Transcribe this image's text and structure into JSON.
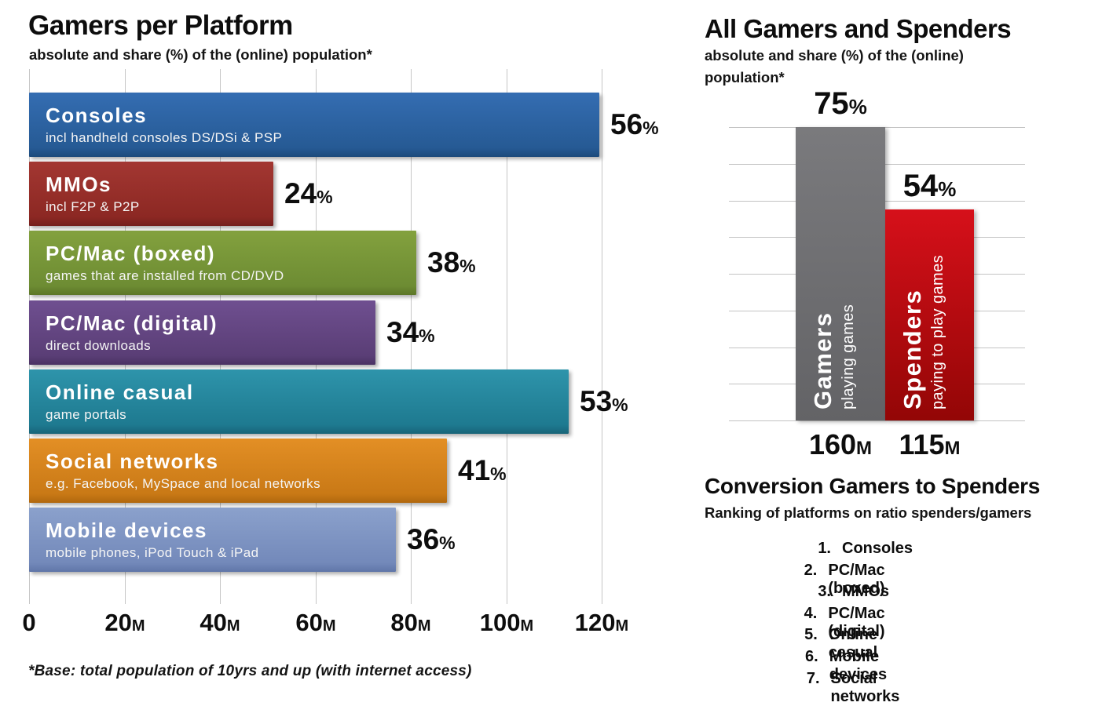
{
  "left_chart": {
    "title": "Gamers per Platform",
    "subtitle": "absolute and share (%) of the (online) population*",
    "footnote": "*Base: total population of 10yrs and up (with internet access)",
    "x_ticks": [
      "0",
      "20M",
      "40M",
      "60M",
      "80M",
      "100M",
      "120M"
    ]
  },
  "right_chart": {
    "title": "All Gamers and Spenders",
    "subtitle": "absolute and share (%) of the (online) population*"
  },
  "conversion": {
    "title": "Conversion Gamers to Spenders",
    "subtitle": "Ranking of platforms on ratio spenders/gamers",
    "items": [
      "Consoles",
      "PC/Mac (boxed)",
      "MMOs",
      "PC/Mac (digital)",
      "Online casual",
      "Mobile devices",
      "Social networks"
    ]
  },
  "colors": {
    "grid": "#c6c6c6",
    "text": "#0d0d0d",
    "bar_text": "#ffffff"
  },
  "chart_data": [
    {
      "type": "bar",
      "orientation": "horizontal",
      "title": "Gamers per Platform",
      "subtitle": "absolute and share (%) of the (online) population*",
      "footnote": "*Base: total population of 10yrs and up (with internet access)",
      "categories": [
        "Consoles",
        "MMOs",
        "PC/Mac (boxed)",
        "PC/Mac (digital)",
        "Online casual",
        "Social networks",
        "Mobile devices"
      ],
      "category_sublabels": [
        "incl handheld consoles DS/DSi & PSP",
        "incl F2P & P2P",
        "games that are installed from CD/DVD",
        "direct downloads",
        "game portals",
        "e.g. Facebook, MySpace and local networks",
        "mobile phones, iPod Touch & iPad"
      ],
      "values_pct": [
        56,
        24,
        38,
        34,
        53,
        41,
        36
      ],
      "approx_values_millions": [
        119,
        51,
        81,
        73,
        113,
        87,
        77
      ],
      "value_labels": [
        "56%",
        "24%",
        "38%",
        "34%",
        "53%",
        "41%",
        "36%"
      ],
      "x_ticks": [
        "0",
        "20M",
        "40M",
        "60M",
        "80M",
        "100M",
        "120M"
      ],
      "xlim_millions": [
        0,
        128
      ],
      "grid": "vertical",
      "legend": "none",
      "bar_colors": [
        [
          "#346db2",
          "#265a94",
          "#1c4a7b"
        ],
        [
          "#a33732",
          "#8c2823",
          "#741f1c"
        ],
        [
          "#83a13e",
          "#6d8c33",
          "#5c7628"
        ],
        [
          "#6f4f90",
          "#5a3e76",
          "#4a3263"
        ],
        [
          "#2e94ab",
          "#1e7a90",
          "#186478"
        ],
        [
          "#e38f25",
          "#c97916",
          "#b0680e"
        ],
        [
          "#8ba1cc",
          "#7389ba",
          "#6076a8"
        ]
      ]
    },
    {
      "type": "bar",
      "orientation": "vertical",
      "title": "All Gamers and Spenders",
      "subtitle": "absolute and share (%) of the (online) population*",
      "categories": [
        "Gamers",
        "Spenders"
      ],
      "category_sublabels": [
        "playing games",
        "paying to play games"
      ],
      "values_pct": [
        75,
        54
      ],
      "pct_labels": [
        "75%",
        "54%"
      ],
      "values_abs_labels": [
        "160M",
        "115M"
      ],
      "ylim_pct": [
        0,
        75
      ],
      "grid": "horizontal",
      "legend": "none",
      "bar_colors": [
        [
          "#7a7a7d",
          "#636366"
        ],
        [
          "#d6101a",
          "#930606"
        ]
      ]
    }
  ]
}
